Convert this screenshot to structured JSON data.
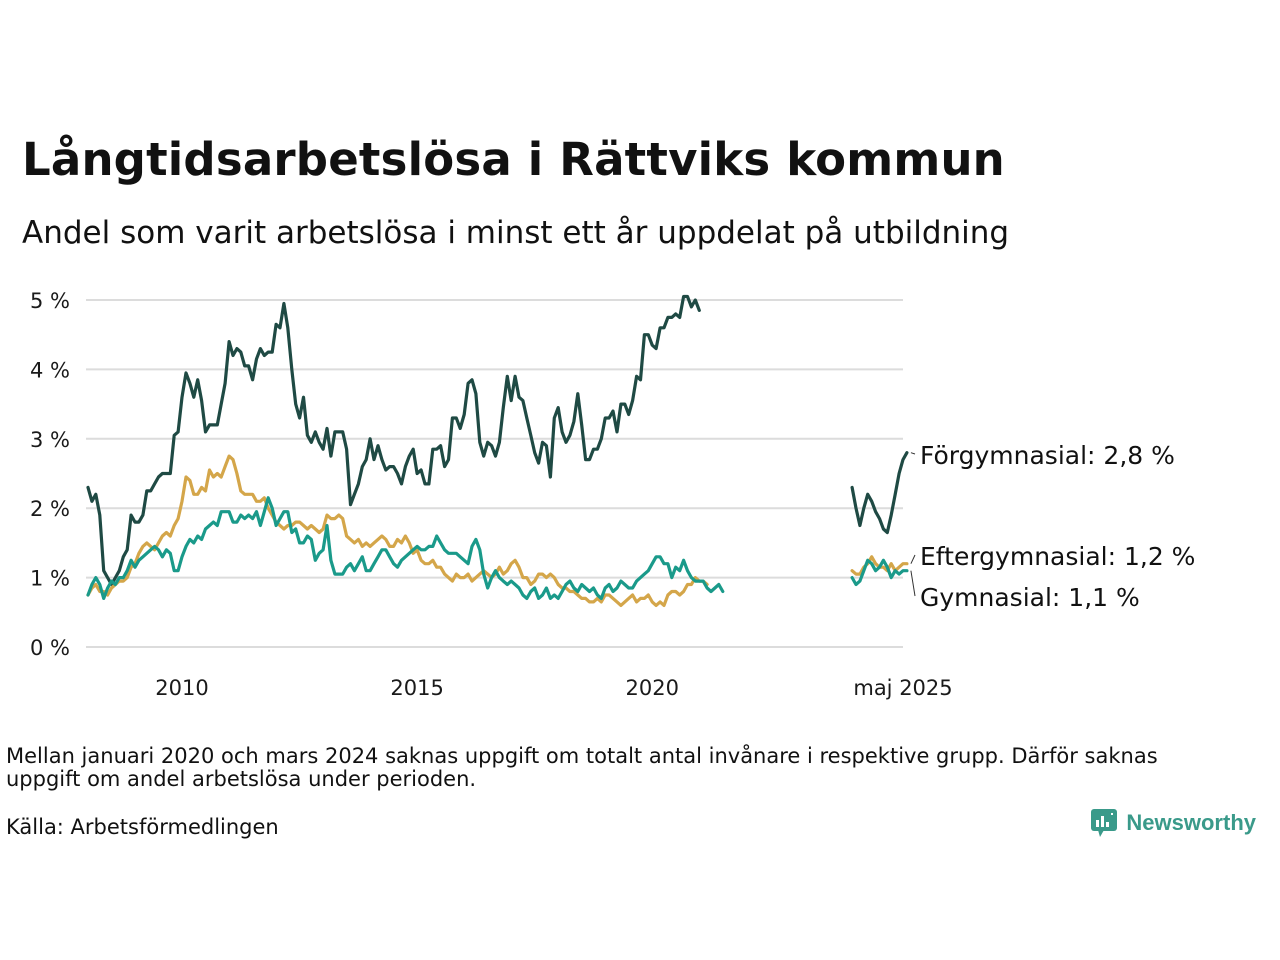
{
  "title": "Långtidsarbetslösa i Rättviks kommun",
  "subtitle": "Andel som varit arbetslösa i minst ett år uppdelat på utbildning",
  "note": "Mellan januari 2020 och mars 2024 saknas uppgift om totalt antal invånare i respektive grupp. Därför saknas uppgift om andel arbetslösa under perioden.",
  "source": "Källa: Arbetsförmedlingen",
  "brand": "Newsworthy",
  "chart_data": {
    "type": "line",
    "title": "Långtidsarbetslösa i Rättviks kommun",
    "subtitle": "Andel som varit arbetslösa i minst ett år uppdelat på utbildning",
    "xlabel": "",
    "ylabel": "",
    "ylim": [
      0,
      5
    ],
    "y_ticks": [
      0,
      1,
      2,
      3,
      4,
      5
    ],
    "y_tick_labels": [
      "0 %",
      "1 %",
      "2 %",
      "3 %",
      "4 %",
      "5 %"
    ],
    "x_range": [
      "2008-01",
      "2025-05"
    ],
    "x_ticks": [
      "2010-01",
      "2015-01",
      "2020-01",
      "2025-05"
    ],
    "x_tick_labels": [
      "2010",
      "2015",
      "2020",
      "maj 2025"
    ],
    "grid": "horizontal",
    "legend": "direct labels at line ends (right)",
    "gap_note": "Inga uppgifter 2021-01 – 2024-03",
    "series": [
      {
        "name": "Förgymnasial",
        "color": "#1f4a44",
        "end_label": "Förgymnasial: 2,8 %",
        "segments": [
          {
            "start": "2008-01",
            "values": [
              2.3,
              2.1,
              2.2,
              1.9,
              1.1,
              1.0,
              0.9,
              1.0,
              1.1,
              1.3,
              1.4,
              1.9,
              1.8,
              1.8,
              1.9,
              2.25,
              2.25,
              2.35,
              2.45,
              2.5,
              2.5,
              2.5,
              3.05,
              3.1,
              3.6,
              3.95,
              3.8,
              3.6,
              3.85,
              3.55,
              3.1,
              3.2,
              3.2,
              3.2,
              3.5,
              3.8,
              4.4,
              4.2,
              4.3,
              4.25,
              4.05,
              4.05,
              3.85,
              4.15,
              4.3,
              4.2,
              4.25,
              4.25,
              4.65,
              4.6,
              4.95,
              4.6,
              4.0,
              3.5,
              3.3,
              3.6,
              3.05,
              2.95,
              3.1,
              2.95,
              2.85,
              3.15,
              2.75,
              3.1,
              3.1,
              3.1,
              2.85,
              2.05,
              2.2,
              2.35,
              2.6,
              2.7,
              3.0,
              2.7,
              2.9,
              2.7,
              2.55,
              2.6,
              2.6,
              2.5,
              2.35,
              2.6,
              2.75,
              2.85,
              2.5,
              2.55,
              2.35,
              2.35,
              2.85,
              2.85,
              2.9,
              2.6,
              2.7,
              3.3,
              3.3,
              3.15,
              3.35,
              3.8,
              3.85,
              3.65,
              2.95,
              2.75,
              2.95,
              2.9,
              2.75,
              2.95,
              3.45,
              3.9,
              3.55,
              3.9,
              3.6,
              3.55,
              3.3,
              3.05,
              2.8,
              2.65,
              2.95,
              2.9,
              2.45,
              3.3,
              3.45,
              3.1,
              2.95,
              3.05,
              3.25,
              3.65,
              3.2,
              2.7,
              2.7,
              2.85,
              2.85,
              3.0,
              3.3,
              3.3,
              3.4,
              3.1,
              3.5,
              3.5,
              3.35,
              3.55,
              3.9,
              3.85,
              4.5,
              4.5,
              4.35,
              4.3,
              4.6,
              4.6,
              4.75,
              4.75,
              4.8,
              4.75,
              5.05,
              5.05,
              4.9,
              5.0,
              4.85
            ]
          },
          {
            "start": "2024-04",
            "values": [
              2.3,
              2.0,
              1.75,
              2.0,
              2.2,
              2.1,
              1.95,
              1.85,
              1.7,
              1.65,
              1.9,
              2.2,
              2.5,
              2.7,
              2.8
            ]
          }
        ]
      },
      {
        "name": "Eftergymnasial",
        "color": "#d4a64a",
        "end_label": "Eftergymnasial: 1,2 %",
        "segments": [
          {
            "start": "2008-01",
            "values": [
              0.75,
              0.85,
              0.9,
              0.8,
              0.8,
              0.75,
              0.85,
              0.9,
              0.95,
              0.95,
              1.0,
              1.15,
              1.2,
              1.35,
              1.45,
              1.5,
              1.45,
              1.4,
              1.5,
              1.6,
              1.65,
              1.6,
              1.75,
              1.85,
              2.1,
              2.45,
              2.4,
              2.2,
              2.2,
              2.3,
              2.25,
              2.55,
              2.45,
              2.5,
              2.45,
              2.6,
              2.75,
              2.7,
              2.5,
              2.25,
              2.2,
              2.2,
              2.2,
              2.1,
              2.1,
              2.15,
              2.0,
              1.9,
              1.8,
              1.75,
              1.7,
              1.75,
              1.75,
              1.8,
              1.8,
              1.75,
              1.7,
              1.75,
              1.7,
              1.65,
              1.7,
              1.9,
              1.85,
              1.85,
              1.9,
              1.85,
              1.6,
              1.55,
              1.5,
              1.55,
              1.45,
              1.5,
              1.45,
              1.5,
              1.55,
              1.6,
              1.55,
              1.45,
              1.45,
              1.55,
              1.5,
              1.6,
              1.5,
              1.35,
              1.4,
              1.25,
              1.2,
              1.2,
              1.25,
              1.15,
              1.15,
              1.05,
              1.0,
              0.95,
              1.05,
              1.0,
              1.0,
              1.05,
              0.95,
              1.0,
              1.05,
              1.1,
              1.05,
              1.0,
              1.05,
              1.15,
              1.05,
              1.1,
              1.2,
              1.25,
              1.15,
              1.0,
              1.0,
              0.9,
              0.95,
              1.05,
              1.05,
              1.0,
              1.05,
              1.0,
              0.9,
              0.85,
              0.85,
              0.8,
              0.8,
              0.75,
              0.7,
              0.7,
              0.65,
              0.65,
              0.7,
              0.65,
              0.75,
              0.75,
              0.7,
              0.65,
              0.6,
              0.65,
              0.7,
              0.75,
              0.65,
              0.7,
              0.7,
              0.75,
              0.65,
              0.6,
              0.65,
              0.6,
              0.75,
              0.8,
              0.8,
              0.75,
              0.8,
              0.9,
              0.9,
              1.0,
              0.95,
              0.95,
              0.9
            ]
          },
          {
            "start": "2024-04",
            "values": [
              1.1,
              1.05,
              1.05,
              1.15,
              1.2,
              1.3,
              1.2,
              1.15,
              1.15,
              1.1,
              1.2,
              1.1,
              1.15,
              1.2,
              1.2
            ]
          }
        ]
      },
      {
        "name": "Gymnasial",
        "color": "#1a9a8a",
        "end_label": "Gymnasial: 1,1 %",
        "segments": [
          {
            "start": "2008-01",
            "values": [
              0.75,
              0.9,
              1.0,
              0.9,
              0.7,
              0.85,
              0.95,
              0.9,
              1.0,
              1.0,
              1.1,
              1.25,
              1.15,
              1.25,
              1.3,
              1.35,
              1.4,
              1.45,
              1.4,
              1.3,
              1.4,
              1.35,
              1.1,
              1.1,
              1.3,
              1.45,
              1.55,
              1.5,
              1.6,
              1.55,
              1.7,
              1.75,
              1.8,
              1.75,
              1.95,
              1.95,
              1.95,
              1.8,
              1.8,
              1.9,
              1.85,
              1.9,
              1.85,
              1.95,
              1.75,
              1.95,
              2.15,
              2.0,
              1.75,
              1.85,
              1.95,
              1.95,
              1.65,
              1.7,
              1.5,
              1.5,
              1.6,
              1.55,
              1.25,
              1.35,
              1.4,
              1.75,
              1.25,
              1.05,
              1.05,
              1.05,
              1.15,
              1.2,
              1.1,
              1.2,
              1.3,
              1.1,
              1.1,
              1.2,
              1.3,
              1.4,
              1.4,
              1.3,
              1.2,
              1.15,
              1.25,
              1.3,
              1.35,
              1.4,
              1.45,
              1.4,
              1.4,
              1.45,
              1.45,
              1.6,
              1.5,
              1.4,
              1.35,
              1.35,
              1.35,
              1.3,
              1.25,
              1.2,
              1.45,
              1.55,
              1.4,
              1.05,
              0.85,
              1.0,
              1.1,
              1.0,
              0.95,
              0.9,
              0.95,
              0.9,
              0.85,
              0.75,
              0.7,
              0.8,
              0.85,
              0.7,
              0.75,
              0.85,
              0.7,
              0.75,
              0.7,
              0.8,
              0.9,
              0.95,
              0.85,
              0.8,
              0.9,
              0.85,
              0.8,
              0.85,
              0.75,
              0.7,
              0.85,
              0.9,
              0.8,
              0.85,
              0.95,
              0.9,
              0.85,
              0.85,
              0.95,
              1.0,
              1.05,
              1.1,
              1.2,
              1.3,
              1.3,
              1.2,
              1.2,
              1.0,
              1.15,
              1.1,
              1.25,
              1.1,
              1.0,
              0.95,
              0.95,
              0.95,
              0.85,
              0.8,
              0.85,
              0.9,
              0.8
            ]
          },
          {
            "start": "2024-04",
            "values": [
              1.0,
              0.9,
              0.95,
              1.1,
              1.25,
              1.2,
              1.1,
              1.15,
              1.25,
              1.15,
              1.0,
              1.1,
              1.05,
              1.1,
              1.1
            ]
          }
        ]
      }
    ]
  }
}
